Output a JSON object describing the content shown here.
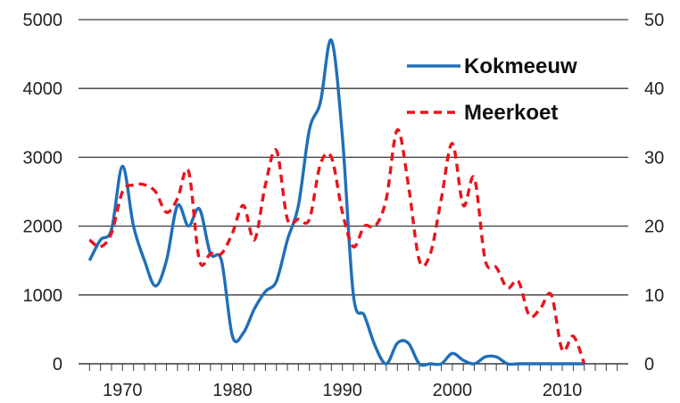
{
  "chart_data": {
    "type": "line",
    "title": "",
    "xlabel": "",
    "ylabel": "",
    "y2label": "",
    "xlim": [
      1966,
      2016
    ],
    "ylim": [
      0,
      5000
    ],
    "y2lim": [
      0,
      50
    ],
    "x_ticks": [
      1970,
      1980,
      1990,
      2000,
      2010
    ],
    "y_ticks": [
      0,
      1000,
      2000,
      3000,
      4000,
      5000
    ],
    "y2_ticks": [
      0,
      10,
      20,
      30,
      40,
      50
    ],
    "grid": "horizontal",
    "legend_position": "top-right",
    "colors": {
      "kokmeeuw": "#1f6fb8",
      "meerkoet": "#e8141c"
    },
    "series": [
      {
        "name": "Kokmeeuw",
        "axis": "left",
        "style": "solid",
        "x": [
          1967,
          1968,
          1969,
          1970,
          1971,
          1972,
          1973,
          1974,
          1975,
          1976,
          1977,
          1978,
          1979,
          1980,
          1981,
          1982,
          1983,
          1984,
          1985,
          1986,
          1987,
          1988,
          1989,
          1990,
          1991,
          1992,
          1993,
          1994,
          1995,
          1996,
          1997,
          1998,
          1999,
          2000,
          2001,
          2002,
          2003,
          2004,
          2005,
          2006,
          2007,
          2008,
          2009,
          2010,
          2011,
          2012
        ],
        "values": [
          1500,
          1800,
          1950,
          2870,
          2000,
          1500,
          1130,
          1500,
          2300,
          2000,
          2250,
          1600,
          1500,
          400,
          450,
          800,
          1050,
          1200,
          1800,
          2300,
          3400,
          3800,
          4700,
          3300,
          1000,
          700,
          250,
          0,
          300,
          300,
          0,
          0,
          0,
          150,
          50,
          0,
          100,
          100,
          0,
          0,
          0,
          0,
          0,
          0,
          0,
          0
        ]
      },
      {
        "name": "Meerkoet",
        "axis": "right",
        "style": "dashed",
        "x": [
          1967,
          1968,
          1969,
          1970,
          1971,
          1972,
          1973,
          1974,
          1975,
          1976,
          1977,
          1978,
          1979,
          1980,
          1981,
          1982,
          1983,
          1984,
          1985,
          1986,
          1987,
          1988,
          1989,
          1990,
          1991,
          1992,
          1993,
          1994,
          1995,
          1996,
          1997,
          1998,
          1999,
          2000,
          2001,
          2002,
          2003,
          2004,
          2005,
          2006,
          2007,
          2008,
          2009,
          2010,
          2011,
          2012
        ],
        "values": [
          18,
          17,
          19,
          25,
          26,
          26,
          25,
          22,
          24,
          28,
          15,
          16,
          16,
          19,
          23,
          18,
          26,
          31,
          21,
          21,
          21,
          29,
          30,
          22,
          17,
          20,
          20,
          24,
          34,
          26,
          15,
          16,
          24,
          32,
          23,
          27,
          15,
          14,
          11,
          12,
          7,
          8,
          10,
          2,
          4,
          0
        ]
      }
    ]
  }
}
